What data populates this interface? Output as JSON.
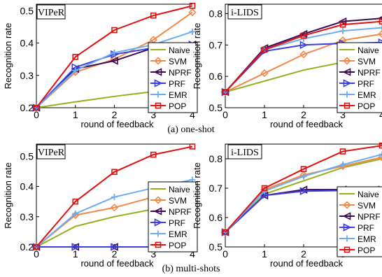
{
  "caption_a": "(a) one-shot",
  "caption_b": "(b) multi-shots",
  "styles": {
    "Naive": {
      "color": "#9aae1f",
      "marker": "none"
    },
    "SVM": {
      "color": "#f08a4b",
      "marker": "diamond"
    },
    "NPRF": {
      "color": "#3a0a52",
      "marker": "tri-left"
    },
    "PRF": {
      "color": "#3b3ee0",
      "marker": "tri-right"
    },
    "EMR": {
      "color": "#6aaef0",
      "marker": "plus"
    },
    "POP": {
      "color": "#e01010",
      "marker": "square"
    }
  },
  "chart_data": [
    {
      "type": "line",
      "title": "VIPeR",
      "xlabel": "round of feedback",
      "ylabel": "Recognition rate",
      "x": [
        0,
        1,
        2,
        3,
        4
      ],
      "xlim": [
        0,
        4
      ],
      "ylim": [
        0.2,
        0.52
      ],
      "yticks": [
        0.2,
        0.3,
        0.4,
        0.5
      ],
      "ytick_labels": [
        "0.2",
        "0.3",
        "0.4",
        "0.5"
      ],
      "legend": "inside-right",
      "series": [
        {
          "name": "Naive",
          "values": [
            0.2,
            0.218,
            0.235,
            0.25,
            0.265
          ]
        },
        {
          "name": "SVM",
          "values": [
            0.2,
            0.31,
            0.35,
            0.41,
            0.495
          ]
        },
        {
          "name": "NPRF",
          "values": [
            0.2,
            0.32,
            0.345,
            0.385,
            0.395
          ]
        },
        {
          "name": "PRF",
          "values": [
            0.2,
            0.325,
            0.365,
            0.385,
            0.395
          ]
        },
        {
          "name": "EMR",
          "values": [
            0.2,
            0.315,
            0.37,
            0.395,
            0.435
          ]
        },
        {
          "name": "POP",
          "values": [
            0.2,
            0.357,
            0.44,
            0.485,
            0.515
          ]
        }
      ]
    },
    {
      "type": "line",
      "title": "i-LIDS",
      "xlabel": "round of feedback",
      "ylabel": "Recognition rate",
      "x": [
        0,
        1,
        2,
        3,
        4
      ],
      "xlim": [
        0,
        4
      ],
      "ylim": [
        0.5,
        0.83
      ],
      "yticks": [
        0.5,
        0.6,
        0.7,
        0.8
      ],
      "ytick_labels": [
        "0.5",
        "0.6",
        "0.7",
        "0.8"
      ],
      "legend": "bottom-right",
      "series": [
        {
          "name": "Naive",
          "values": [
            0.55,
            0.585,
            0.62,
            0.645,
            0.66
          ]
        },
        {
          "name": "SVM",
          "values": [
            0.55,
            0.61,
            0.67,
            0.715,
            0.735
          ]
        },
        {
          "name": "NPRF",
          "values": [
            0.55,
            0.69,
            0.735,
            0.775,
            0.785
          ]
        },
        {
          "name": "PRF",
          "values": [
            0.55,
            0.68,
            0.7,
            0.705,
            0.708
          ]
        },
        {
          "name": "EMR",
          "values": [
            0.55,
            0.685,
            0.72,
            0.745,
            0.755
          ]
        },
        {
          "name": "POP",
          "values": [
            0.55,
            0.685,
            0.73,
            0.765,
            0.775
          ]
        }
      ]
    },
    {
      "type": "line",
      "title": "VIPeR",
      "xlabel": "round of feedback",
      "ylabel": "Recognition rate",
      "x": [
        0,
        1,
        2,
        3,
        4
      ],
      "xlim": [
        0,
        4
      ],
      "ylim": [
        0.2,
        0.54
      ],
      "yticks": [
        0.2,
        0.3,
        0.4,
        0.5
      ],
      "ytick_labels": [
        "0.2",
        "0.3",
        "0.4",
        "0.5"
      ],
      "legend": "inside-right",
      "series": [
        {
          "name": "Naive",
          "values": [
            0.2,
            0.268,
            0.3,
            0.325,
            0.352
          ]
        },
        {
          "name": "SVM",
          "values": [
            0.2,
            0.305,
            0.33,
            0.365,
            0.385
          ]
        },
        {
          "name": "NPRF",
          "values": [
            0.2,
            0.2,
            0.2,
            0.2,
            0.2
          ]
        },
        {
          "name": "PRF",
          "values": [
            0.2,
            0.2,
            0.2,
            0.2,
            0.2
          ]
        },
        {
          "name": "EMR",
          "values": [
            0.2,
            0.31,
            0.365,
            0.395,
            0.422
          ]
        },
        {
          "name": "POP",
          "values": [
            0.2,
            0.35,
            0.448,
            0.505,
            0.532
          ]
        }
      ]
    },
    {
      "type": "line",
      "title": "i-LIDS",
      "xlabel": "round of feedback",
      "ylabel": "Recognition rate",
      "x": [
        0,
        1,
        2,
        3,
        4
      ],
      "xlim": [
        0,
        4
      ],
      "ylim": [
        0.5,
        0.85
      ],
      "yticks": [
        0.5,
        0.6,
        0.7,
        0.8
      ],
      "ytick_labels": [
        "0.5",
        "0.6",
        "0.7",
        "0.8"
      ],
      "legend": "bottom-right",
      "series": [
        {
          "name": "Naive",
          "values": [
            0.55,
            0.68,
            0.725,
            0.77,
            0.8
          ]
        },
        {
          "name": "SVM",
          "values": [
            0.55,
            0.695,
            0.745,
            0.775,
            0.805
          ]
        },
        {
          "name": "NPRF",
          "values": [
            0.55,
            0.675,
            0.695,
            0.695,
            0.695
          ]
        },
        {
          "name": "PRF",
          "values": [
            0.55,
            0.675,
            0.69,
            0.692,
            0.695
          ]
        },
        {
          "name": "EMR",
          "values": [
            0.55,
            0.69,
            0.74,
            0.78,
            0.815
          ]
        },
        {
          "name": "POP",
          "values": [
            0.55,
            0.7,
            0.765,
            0.825,
            0.845
          ]
        }
      ]
    }
  ]
}
